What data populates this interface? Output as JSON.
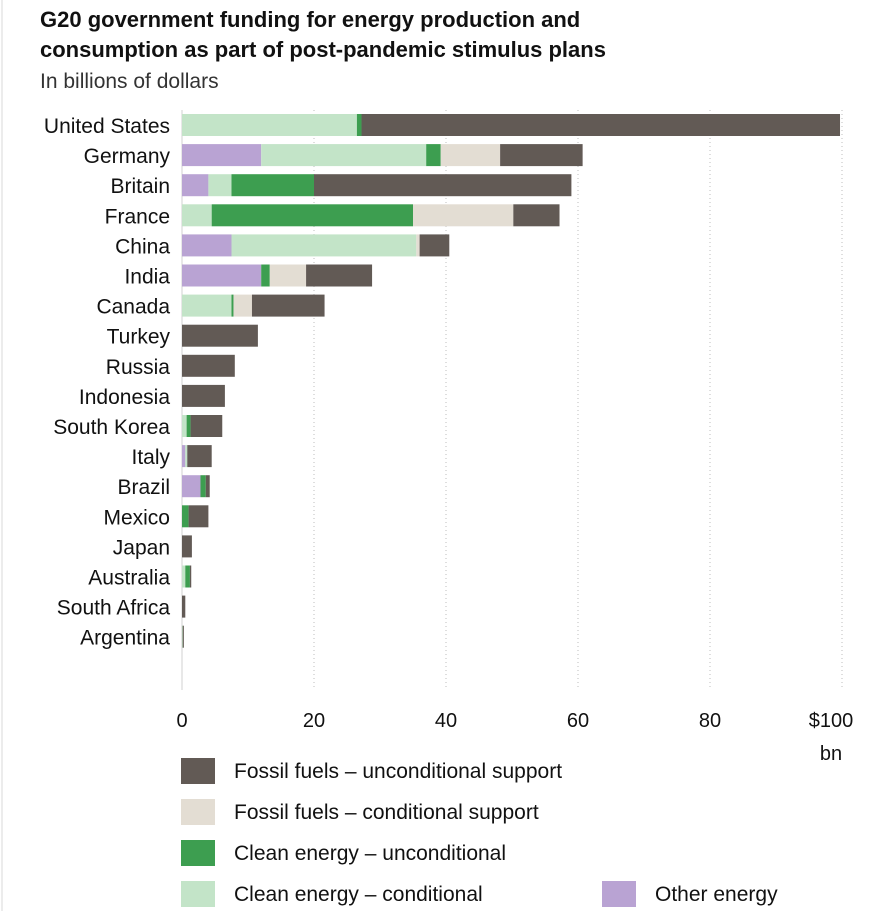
{
  "chart_data": {
    "type": "bar",
    "orientation": "horizontal",
    "stacked": true,
    "title_lines": [
      "G20 government funding for energy production and",
      "consumption as part of post-pandemic stimulus plans"
    ],
    "subtitle": "In billions of dollars",
    "categories": [
      "United States",
      "Germany",
      "Britain",
      "France",
      "China",
      "India",
      "Canada",
      "Turkey",
      "Russia",
      "Indonesia",
      "South Korea",
      "Italy",
      "Brazil",
      "Mexico",
      "Japan",
      "Australia",
      "South Africa",
      "Argentina"
    ],
    "series": [
      {
        "name": "Other energy",
        "color": "#b9a3d3",
        "values": [
          0,
          12,
          4,
          0,
          7.5,
          12,
          0,
          0,
          0,
          0,
          0,
          0.5,
          2.8,
          0,
          0,
          0,
          0,
          0
        ]
      },
      {
        "name": "Clean energy - conditional",
        "color": "#c3e4c8",
        "values": [
          26.5,
          25,
          3.5,
          4.5,
          28,
          0,
          7.5,
          0,
          0,
          0,
          0.7,
          0.3,
          0,
          0,
          0,
          0.5,
          0,
          0.1
        ]
      },
      {
        "name": "Clean energy - unconditional",
        "color": "#3d9e50",
        "values": [
          0.7,
          2.2,
          12.5,
          30.5,
          0,
          1.3,
          0.3,
          0,
          0,
          0,
          0.6,
          0,
          0.8,
          1,
          0,
          0.7,
          0,
          0
        ]
      },
      {
        "name": "Fossil fuels - conditional support",
        "color": "#e3ddd3",
        "values": [
          0,
          9,
          0,
          15.2,
          0.5,
          5.5,
          2.8,
          0,
          0,
          0,
          0,
          0,
          0,
          0,
          0,
          0,
          0,
          0
        ]
      },
      {
        "name": "Fossil fuels - unconditional support",
        "color": "#625a55",
        "values": [
          72.5,
          12.5,
          39,
          7,
          4.5,
          10,
          11,
          11.5,
          8,
          6.5,
          4.8,
          3.7,
          0.6,
          3,
          1.5,
          0.2,
          0.5,
          0.1
        ]
      }
    ],
    "x_ticks": [
      "0",
      "20",
      "40",
      "60",
      "80",
      "$100"
    ],
    "x_unit_label": "bn",
    "xlim": [
      0,
      100
    ],
    "grid": "vertical-dotted",
    "legend_order": [
      {
        "series": "Fossil fuels - unconditional support",
        "label": "Fossil fuels – unconditional support"
      },
      {
        "series": "Fossil fuels - conditional support",
        "label": "Fossil fuels – conditional support"
      },
      {
        "series": "Clean energy - unconditional",
        "label": "Clean energy – unconditional"
      },
      {
        "series": "Clean energy - conditional",
        "label": "Clean energy – conditional"
      },
      {
        "series": "Other energy",
        "label": "Other energy"
      }
    ],
    "legend_placement": "bottom"
  }
}
